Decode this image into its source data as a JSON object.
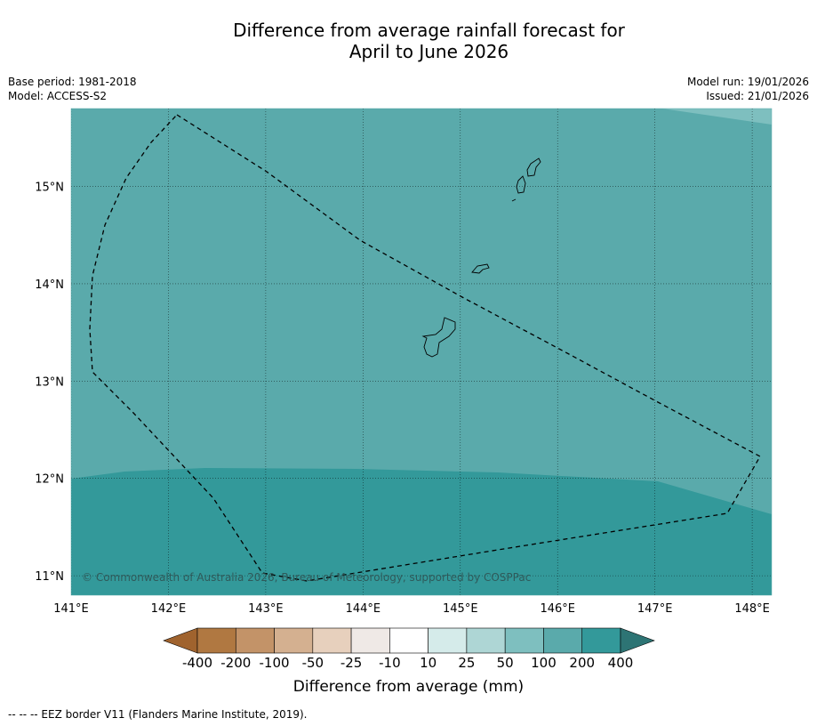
{
  "title_line1": "Difference from average rainfall forecast for",
  "title_line2": "April to June 2026",
  "meta_left": {
    "base_period": "Base period: 1981-2018",
    "model": "Model: ACCESS-S2"
  },
  "meta_right": {
    "model_run": "Model run: 19/01/2026",
    "issued": "Issued: 21/01/2026"
  },
  "map": {
    "lon_range": [
      141.0,
      148.2
    ],
    "lat_range": [
      10.8,
      15.8
    ],
    "lon_ticks": [
      "141°E",
      "142°E",
      "143°E",
      "144°E",
      "145°E",
      "146°E",
      "147°E",
      "148°E"
    ],
    "lat_ticks": [
      "15°N",
      "14°N",
      "13°N",
      "12°N",
      "11°N"
    ],
    "gridlines": true,
    "fill_colors": {
      "band_100_200": "#5aaaab",
      "band_200_400": "#33999a",
      "band_50_100": "#7ebfbf"
    },
    "copyright": "© Commonwealth of Australia 2026, Bureau of Meteorology, supported by COSPPac"
  },
  "colorbar": {
    "title": "Difference from average (mm)",
    "labels": [
      "-400",
      "-200",
      "-100",
      "-50",
      "-25",
      "-10",
      "10",
      "25",
      "50",
      "100",
      "200",
      "400"
    ],
    "colors": [
      "#a0632e",
      "#b07841",
      "#c39368",
      "#d4b090",
      "#e7d0bd",
      "#efe9e6",
      "#ffffff",
      "#d5ebea",
      "#aed6d5",
      "#7ebfbf",
      "#5aaaab",
      "#33999a",
      "#2d7474"
    ]
  },
  "footer": "--  --  -- EEZ border V11 (Flanders Marine Institute, 2019)."
}
